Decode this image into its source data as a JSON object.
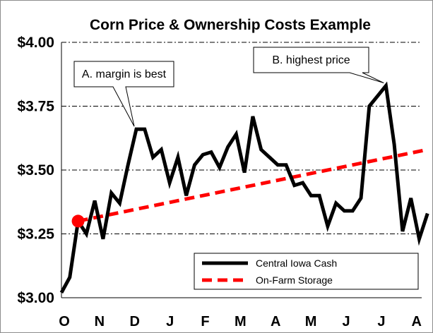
{
  "chart_data": {
    "type": "line",
    "title": "Corn Price & Ownership Costs Example",
    "xlabel": "",
    "ylabel": "",
    "x_tick_labels": [
      "O",
      "N",
      "D",
      "J",
      "F",
      "M",
      "A",
      "M",
      "J",
      "J",
      "A"
    ],
    "y_tick_labels": [
      "$3.00",
      "$3.25",
      "$3.50",
      "$3.75",
      "$4.00"
    ],
    "y_ticks": [
      3.0,
      3.25,
      3.5,
      3.75,
      4.0
    ],
    "ylim": [
      3.0,
      4.0
    ],
    "xlim": [
      0,
      43.3
    ],
    "grid": "horizontal dash-dot",
    "legend_position": "bottom-right",
    "series": [
      {
        "name": "Central Iowa Cash",
        "color": "#000000",
        "style": "solid",
        "x": [
          0,
          1,
          2,
          3,
          4,
          5,
          6,
          7,
          8,
          9,
          10,
          11,
          12,
          13,
          14,
          15,
          16,
          17,
          18,
          19,
          20,
          21,
          22,
          23,
          24,
          25,
          26,
          27,
          28,
          29,
          30,
          31,
          32,
          33,
          34,
          35,
          36,
          37,
          38,
          39,
          40,
          41,
          42,
          43,
          44
        ],
        "values": [
          3.02,
          3.08,
          3.3,
          3.25,
          3.38,
          3.23,
          3.41,
          3.37,
          3.52,
          3.66,
          3.66,
          3.55,
          3.58,
          3.45,
          3.55,
          3.4,
          3.52,
          3.56,
          3.57,
          3.51,
          3.59,
          3.64,
          3.49,
          3.71,
          3.58,
          3.55,
          3.52,
          3.52,
          3.44,
          3.45,
          3.4,
          3.4,
          3.28,
          3.37,
          3.34,
          3.34,
          3.39,
          3.75,
          3.79,
          3.83,
          3.6,
          3.26,
          3.39,
          3.23,
          3.33
        ]
      },
      {
        "name": "On-Farm Storage",
        "color": "#ff0000",
        "style": "dashed",
        "x": [
          2,
          44
        ],
        "values": [
          3.3,
          3.58
        ]
      }
    ],
    "marker": {
      "x": 2,
      "y": 3.3,
      "color": "#ff0000"
    },
    "annotations": [
      {
        "text": "A. margin is best",
        "x": 9,
        "y": 3.66
      },
      {
        "text": "B. highest price",
        "x": 39,
        "y": 3.83
      }
    ]
  }
}
